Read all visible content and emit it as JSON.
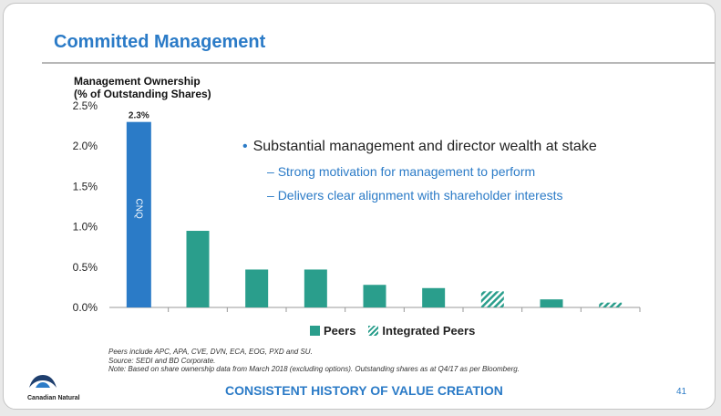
{
  "slide": {
    "title": "Committed Management",
    "footer": "CONSISTENT HISTORY OF VALUE CREATION",
    "page_number": "41",
    "logo_text": "Canadian Natural"
  },
  "bullets": {
    "main": "Substantial management and director wealth at stake",
    "subs": [
      "Strong motivation for management to perform",
      "Delivers clear alignment with shareholder interests"
    ]
  },
  "legend": {
    "peers": "Peers",
    "integrated": "Integrated Peers"
  },
  "notes": [
    "Peers include APC, APA, CVE, DVN, ECA, EOG, PXD and SU.",
    "Source: SEDI and BD Corporate.",
    "Note: Based on share ownership data from March 2018 (excluding options). Outstanding shares as at Q4/17 as per Bloomberg."
  ],
  "chart_data": {
    "type": "bar",
    "ylabel_lines": [
      "Management Ownership",
      "(% of Outstanding Shares)"
    ],
    "ylim": [
      0,
      2.5
    ],
    "yticks": [
      "0.0%",
      "0.5%",
      "1.0%",
      "1.5%",
      "2.0%",
      "2.5%"
    ],
    "ytick_values": [
      0,
      0.5,
      1.0,
      1.5,
      2.0,
      2.5
    ],
    "bars": [
      {
        "value": 2.3,
        "group": "cnq",
        "label": "CNQ",
        "data_label": "2.3%"
      },
      {
        "value": 0.95,
        "group": "peers"
      },
      {
        "value": 0.47,
        "group": "peers"
      },
      {
        "value": 0.47,
        "group": "peers"
      },
      {
        "value": 0.28,
        "group": "peers"
      },
      {
        "value": 0.24,
        "group": "peers"
      },
      {
        "value": 0.2,
        "group": "integrated"
      },
      {
        "value": 0.1,
        "group": "peers"
      },
      {
        "value": 0.06,
        "group": "integrated"
      }
    ],
    "colors": {
      "cnq": "#2b7bc7",
      "peers": "#2a9e8c",
      "integrated": "#2a9e8c"
    }
  }
}
